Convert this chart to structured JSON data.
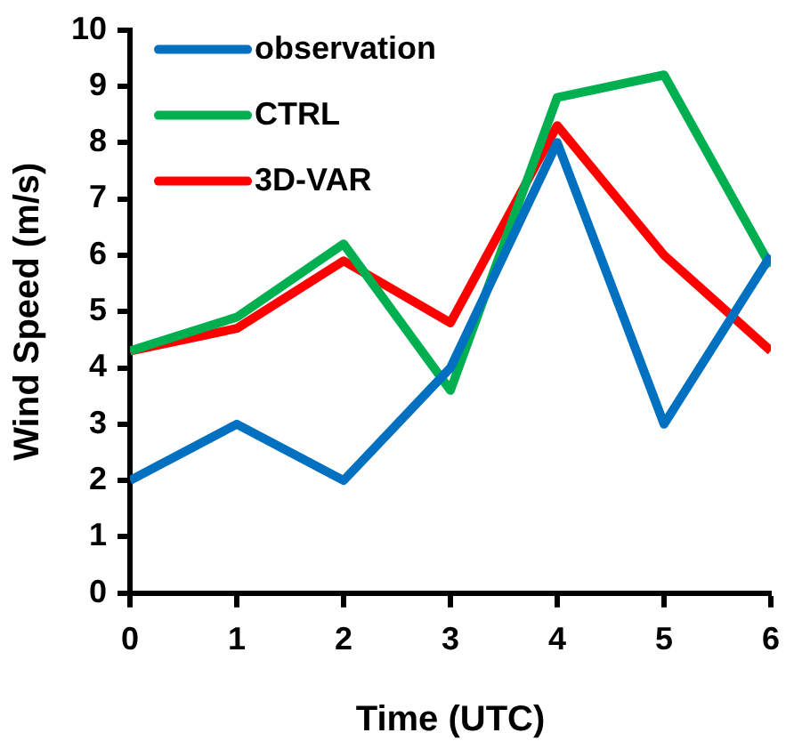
{
  "chart_data": {
    "type": "line",
    "xlabel": "Time (UTC)",
    "ylabel": "Wind Speed (m/s)",
    "x": [
      0,
      1,
      2,
      3,
      4,
      5,
      6
    ],
    "xlim": [
      0,
      6
    ],
    "xticks": [
      0,
      1,
      2,
      3,
      4,
      5,
      6
    ],
    "ylim": [
      0,
      10
    ],
    "yticks": [
      0,
      1,
      2,
      3,
      4,
      5,
      6,
      7,
      8,
      9,
      10
    ],
    "grid": false,
    "legend": "top left",
    "marker": "none",
    "series": [
      {
        "name": "observation",
        "color": "#0070c0",
        "values": [
          2,
          3,
          2,
          4,
          8,
          3,
          6
        ]
      },
      {
        "name": "CTRL",
        "color": "#00b050",
        "values": [
          4.3,
          4.9,
          6.2,
          3.6,
          8.8,
          9.2,
          5.8
        ]
      },
      {
        "name": "3D-VAR",
        "color": "#ff0000",
        "values": [
          4.3,
          4.7,
          5.9,
          4.8,
          8.3,
          6.0,
          4.3
        ]
      }
    ]
  }
}
